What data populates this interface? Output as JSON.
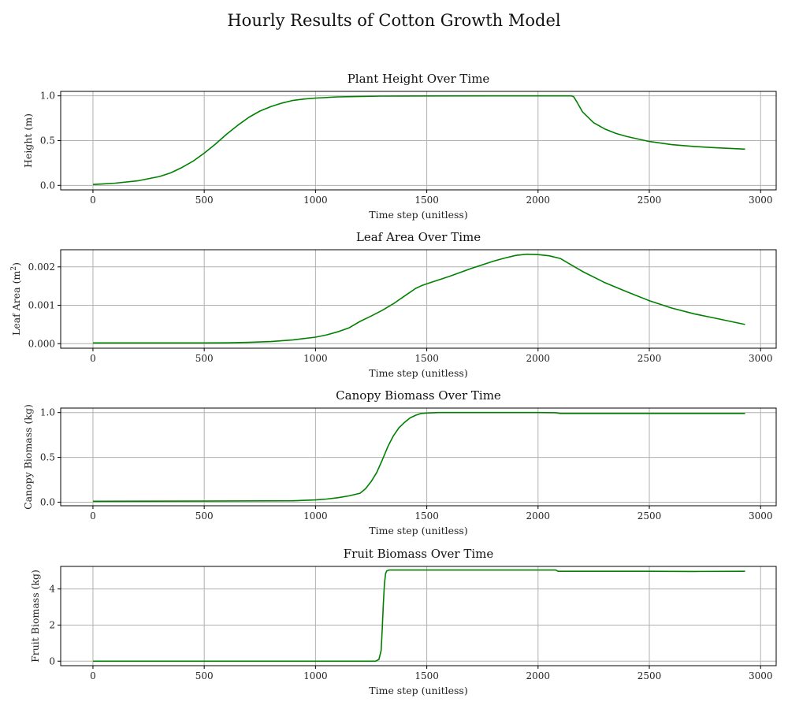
{
  "figure": {
    "title": "Hourly Results of Cotton Growth Model"
  },
  "colors": {
    "line": "#008000",
    "grid": "#b0b0b0"
  },
  "chart_data": [
    {
      "type": "line",
      "title": "Plant Height Over Time",
      "xlabel": "Time step (unitless)",
      "ylabel": "Height (m)",
      "grid": true,
      "xlim": [
        -145,
        3070
      ],
      "ylim": [
        -0.05,
        1.05
      ],
      "xticks": [
        0,
        500,
        1000,
        1500,
        2000,
        2500,
        3000
      ],
      "xtick_labels": [
        "0",
        "500",
        "1000",
        "1500",
        "2000",
        "2500",
        "3000"
      ],
      "yticks": [
        0.0,
        0.5,
        1.0
      ],
      "ytick_labels": [
        "0.0",
        "0.5",
        "1.0"
      ],
      "series": [
        {
          "x": [
            0,
            100,
            200,
            300,
            350,
            400,
            450,
            500,
            550,
            600,
            650,
            700,
            750,
            800,
            850,
            900,
            950,
            1000,
            1100,
            1200,
            1300,
            1500,
            1800,
            2000,
            2150,
            2160,
            2175,
            2200,
            2250,
            2300,
            2350,
            2400,
            2500,
            2600,
            2700,
            2800,
            2930
          ],
          "y": [
            0.01,
            0.025,
            0.05,
            0.1,
            0.14,
            0.2,
            0.27,
            0.36,
            0.46,
            0.57,
            0.67,
            0.76,
            0.83,
            0.88,
            0.92,
            0.95,
            0.965,
            0.975,
            0.988,
            0.994,
            0.997,
            0.999,
            1.0,
            1.0,
            1.0,
            0.99,
            0.93,
            0.82,
            0.7,
            0.63,
            0.58,
            0.545,
            0.49,
            0.455,
            0.435,
            0.42,
            0.405
          ]
        }
      ]
    },
    {
      "type": "line",
      "title": "Leaf Area Over Time",
      "xlabel": "Time step (unitless)",
      "ylabel": "Leaf Area (m",
      "ylabel_sup": "2",
      "ylabel_end": ")",
      "grid": true,
      "xlim": [
        -145,
        3070
      ],
      "ylim": [
        -0.000117,
        0.002447
      ],
      "xticks": [
        0,
        500,
        1000,
        1500,
        2000,
        2500,
        3000
      ],
      "xtick_labels": [
        "0",
        "500",
        "1000",
        "1500",
        "2000",
        "2500",
        "3000"
      ],
      "yticks": [
        0.0,
        0.001,
        0.002
      ],
      "ytick_labels": [
        "0.000",
        "0.001",
        "0.002"
      ],
      "series": [
        {
          "x": [
            0,
            300,
            500,
            600,
            700,
            800,
            900,
            1000,
            1050,
            1100,
            1150,
            1200,
            1250,
            1300,
            1350,
            1400,
            1450,
            1480,
            1500,
            1600,
            1700,
            1800,
            1850,
            1900,
            1950,
            2000,
            2050,
            2100,
            2150,
            2200,
            2300,
            2400,
            2500,
            2600,
            2700,
            2800,
            2930
          ],
          "y": [
            2e-05,
            2e-05,
            2e-05,
            2.2e-05,
            3.5e-05,
            5.5e-05,
            0.0001,
            0.00017,
            0.00023,
            0.00031,
            0.00041,
            0.00058,
            0.00072,
            0.00087,
            0.00104,
            0.00124,
            0.00144,
            0.00152,
            0.00156,
            0.00175,
            0.00196,
            0.00215,
            0.00223,
            0.0023,
            0.00233,
            0.00232,
            0.00229,
            0.00222,
            0.00205,
            0.00188,
            0.00159,
            0.00135,
            0.00112,
            0.00093,
            0.00078,
            0.00066,
            0.0005
          ]
        }
      ]
    },
    {
      "type": "line",
      "title": "Canopy Biomass Over Time",
      "xlabel": "Time step (unitless)",
      "ylabel": "Canopy Biomass (kg)",
      "grid": true,
      "xlim": [
        -145,
        3070
      ],
      "ylim": [
        -0.04,
        1.05
      ],
      "xticks": [
        0,
        500,
        1000,
        1500,
        2000,
        2500,
        3000
      ],
      "xtick_labels": [
        "0",
        "500",
        "1000",
        "1500",
        "2000",
        "2500",
        "3000"
      ],
      "yticks": [
        0.0,
        0.5,
        1.0
      ],
      "ytick_labels": [
        "0.0",
        "0.5",
        "1.0"
      ],
      "series": [
        {
          "x": [
            0,
            500,
            900,
            1000,
            1050,
            1100,
            1150,
            1200,
            1225,
            1250,
            1275,
            1300,
            1325,
            1350,
            1375,
            1400,
            1425,
            1450,
            1475,
            1500,
            1550,
            1700,
            2000,
            2080,
            2100,
            2200,
            2500,
            2930
          ],
          "y": [
            0.01,
            0.012,
            0.015,
            0.025,
            0.035,
            0.05,
            0.07,
            0.1,
            0.15,
            0.23,
            0.33,
            0.47,
            0.62,
            0.74,
            0.83,
            0.89,
            0.94,
            0.97,
            0.99,
            0.995,
            1.0,
            1.0,
            1.0,
            0.998,
            0.99,
            0.99,
            0.99,
            0.99
          ]
        }
      ]
    },
    {
      "type": "line",
      "title": "Fruit Biomass Over Time",
      "xlabel": "Time step (unitless)",
      "ylabel": "Fruit Biomass (kg)",
      "grid": true,
      "xlim": [
        -145,
        3070
      ],
      "ylim": [
        -0.25,
        5.25
      ],
      "xticks": [
        0,
        500,
        1000,
        1500,
        2000,
        2500,
        3000
      ],
      "xtick_labels": [
        "0",
        "500",
        "1000",
        "1500",
        "2000",
        "2500",
        "3000"
      ],
      "yticks": [
        0,
        2,
        4
      ],
      "ytick_labels": [
        "0",
        "2",
        "4"
      ],
      "series": [
        {
          "x": [
            0,
            500,
            1000,
            1270,
            1285,
            1295,
            1300,
            1305,
            1310,
            1315,
            1320,
            1330,
            1400,
            1800,
            2080,
            2090,
            2300,
            2500,
            2700,
            2930
          ],
          "y": [
            0.0,
            0.0,
            0.0,
            0.0,
            0.1,
            0.6,
            1.8,
            3.2,
            4.3,
            4.85,
            5.0,
            5.05,
            5.05,
            5.05,
            5.05,
            4.98,
            4.98,
            4.98,
            4.97,
            4.98
          ]
        }
      ]
    }
  ]
}
